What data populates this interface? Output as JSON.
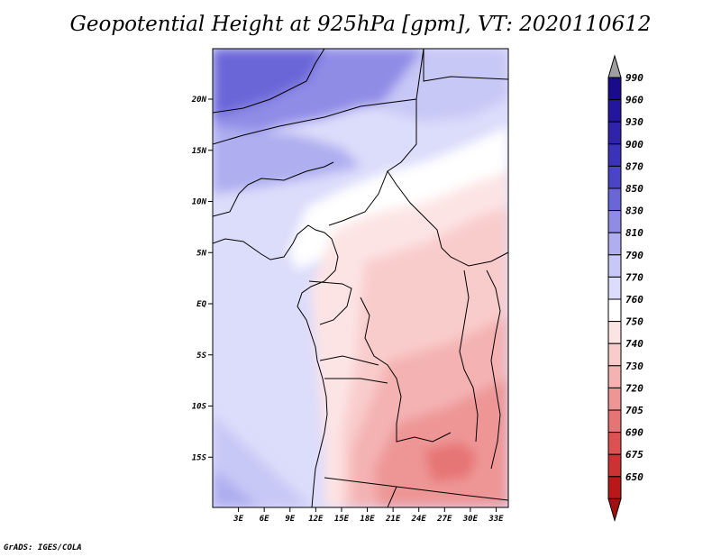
{
  "title": "Geopotential Height at 925hPa [gpm], VT: 2020110612",
  "footer": "GrADS: IGES/COLA",
  "map": {
    "lat_ticks": [
      {
        "value": 20,
        "label": "20N"
      },
      {
        "value": 15,
        "label": "15N"
      },
      {
        "value": 10,
        "label": "10N"
      },
      {
        "value": 5,
        "label": "5N"
      },
      {
        "value": 0,
        "label": "EQ"
      },
      {
        "value": -5,
        "label": "5S"
      },
      {
        "value": -10,
        "label": "10S"
      },
      {
        "value": -15,
        "label": "15S"
      }
    ],
    "lon_ticks": [
      {
        "value": 3,
        "label": "3E"
      },
      {
        "value": 6,
        "label": "6E"
      },
      {
        "value": 9,
        "label": "9E"
      },
      {
        "value": 12,
        "label": "12E"
      },
      {
        "value": 15,
        "label": "15E"
      },
      {
        "value": 18,
        "label": "18E"
      },
      {
        "value": 21,
        "label": "21E"
      },
      {
        "value": 24,
        "label": "24E"
      },
      {
        "value": 27,
        "label": "27E"
      },
      {
        "value": 30,
        "label": "30E"
      },
      {
        "value": 33,
        "label": "33E"
      }
    ]
  },
  "colorbar": {
    "levels": [
      {
        "label": "990",
        "color": "#1a0a8c"
      },
      {
        "label": "960",
        "color": "#23169c"
      },
      {
        "label": "930",
        "color": "#2e23aa"
      },
      {
        "label": "900",
        "color": "#3a32b8"
      },
      {
        "label": "870",
        "color": "#4a44c6"
      },
      {
        "label": "850",
        "color": "#6a66d8"
      },
      {
        "label": "830",
        "color": "#8f8ce6"
      },
      {
        "label": "810",
        "color": "#aeaef0"
      },
      {
        "label": "790",
        "color": "#c8c8f6"
      },
      {
        "label": "770",
        "color": "#dcdcfb"
      },
      {
        "label": "760",
        "color": "#ffffff"
      },
      {
        "label": "750",
        "color": "#fde4e4"
      },
      {
        "label": "740",
        "color": "#f9cccc"
      },
      {
        "label": "730",
        "color": "#f4b2b2"
      },
      {
        "label": "720",
        "color": "#ee9696"
      },
      {
        "label": "705",
        "color": "#e67474"
      },
      {
        "label": "690",
        "color": "#dc5252"
      },
      {
        "label": "675",
        "color": "#cc3232"
      },
      {
        "label": "650",
        "color": "#b81818"
      }
    ],
    "top_arrow_color": "#a0a0a0",
    "bottom_arrow_color": "#a01010"
  }
}
